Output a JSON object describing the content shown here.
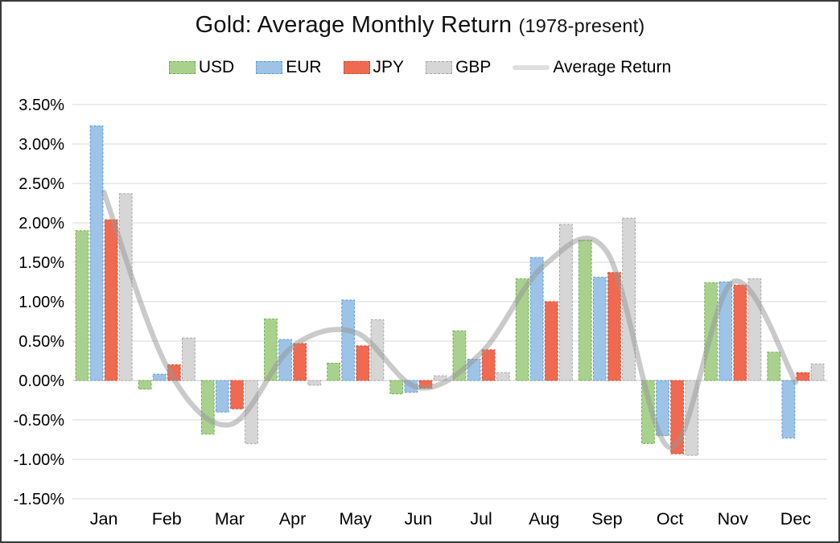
{
  "chart": {
    "title": "Gold: Average Monthly Return",
    "title_note": "(1978-present)"
  },
  "chart_data": {
    "type": "bar",
    "title": "Gold: Average Monthly Return (1978-present)",
    "categories": [
      "Jan",
      "Feb",
      "Mar",
      "Apr",
      "May",
      "Jun",
      "Jul",
      "Aug",
      "Sep",
      "Oct",
      "Nov",
      "Dec"
    ],
    "series": [
      {
        "name": "USD",
        "type": "bar",
        "fill": "#a9d18e",
        "stroke": "#70ad47",
        "values": [
          1.9,
          -0.11,
          -0.68,
          0.78,
          0.22,
          -0.17,
          0.63,
          1.29,
          1.78,
          -0.8,
          1.24,
          0.36
        ]
      },
      {
        "name": "EUR",
        "type": "bar",
        "fill": "#9dc3e6",
        "stroke": "#5b9bd5",
        "values": [
          3.23,
          0.08,
          -0.4,
          0.52,
          1.02,
          -0.15,
          0.27,
          1.56,
          1.31,
          -0.7,
          1.25,
          -0.73
        ]
      },
      {
        "name": "JPY",
        "type": "bar",
        "fill": "#ef6a51",
        "stroke": "#cd4b30",
        "values": [
          2.04,
          0.2,
          -0.36,
          0.47,
          0.44,
          -0.1,
          0.39,
          1.0,
          1.37,
          -0.93,
          1.21,
          0.1
        ]
      },
      {
        "name": "GBP",
        "type": "bar",
        "fill": "#d6d6d6",
        "stroke": "#a6a6a6",
        "values": [
          2.37,
          0.54,
          -0.8,
          -0.06,
          0.77,
          0.06,
          0.1,
          1.98,
          2.06,
          -0.95,
          1.29,
          0.21
        ]
      },
      {
        "name": "Average Return",
        "type": "line",
        "stroke_rgba": "rgba(150,150,150,0.5)",
        "legend_color": "#dedede",
        "values": [
          2.39,
          0.18,
          -0.56,
          0.43,
          0.61,
          -0.09,
          0.35,
          1.46,
          1.63,
          -0.85,
          1.25,
          -0.02
        ]
      }
    ],
    "ylim": [
      -1.5,
      3.5
    ],
    "ytick_step": 0.5,
    "ytick_labels": [
      "3.50%",
      "3.00%",
      "2.50%",
      "2.00%",
      "1.50%",
      "1.00%",
      "0.50%",
      "0.00%",
      "-0.50%",
      "-1.00%",
      "-1.50%"
    ],
    "grid": true,
    "gridline_color": "#d9d9d9",
    "zero_line_color": "#c9c9c9",
    "legend_position": "top"
  }
}
